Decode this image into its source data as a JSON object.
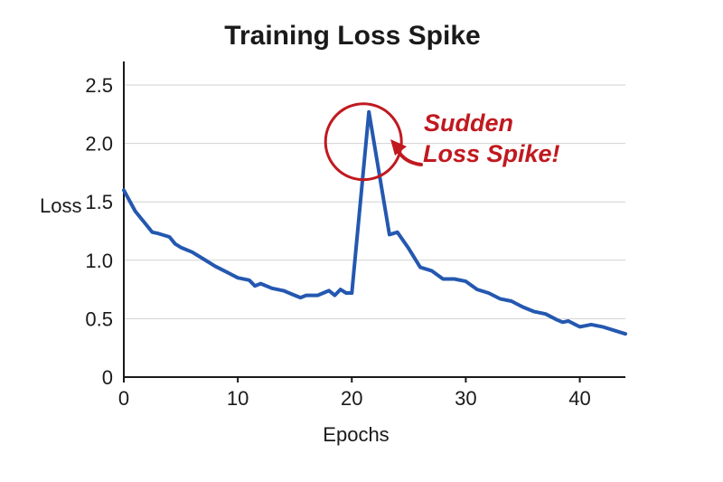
{
  "chart_data": {
    "type": "line",
    "title": "Training Loss Spike",
    "xlabel": "Epochs",
    "ylabel": "Loss",
    "xlim": [
      0,
      44
    ],
    "ylim": [
      0,
      2.5
    ],
    "x_ticks": [
      "0",
      "10",
      "20",
      "30",
      "40"
    ],
    "y_ticks": [
      "0",
      "0.5",
      "1.0",
      "1.5",
      "2.0",
      "2.5"
    ],
    "grid": "horizontal",
    "series": [
      {
        "color": "#2458b0",
        "x": [
          0,
          1,
          2,
          2.5,
          3,
          4,
          4.5,
          5,
          6,
          7,
          8,
          9,
          10,
          11,
          11.5,
          12,
          13,
          14,
          15,
          15.5,
          16,
          17,
          18,
          18.5,
          19,
          19.5,
          20,
          21.5,
          23.3,
          24,
          25,
          26,
          27,
          28,
          29,
          30,
          31,
          32,
          33,
          34,
          35,
          36,
          37,
          38,
          38.5,
          39,
          40,
          40.5,
          41,
          42,
          43,
          44
        ],
        "values": [
          1.6,
          1.42,
          1.3,
          1.24,
          1.23,
          1.2,
          1.14,
          1.11,
          1.07,
          1.01,
          0.95,
          0.9,
          0.85,
          0.83,
          0.78,
          0.8,
          0.76,
          0.74,
          0.7,
          0.68,
          0.7,
          0.7,
          0.74,
          0.7,
          0.75,
          0.72,
          0.72,
          2.27,
          1.22,
          1.24,
          1.1,
          0.94,
          0.91,
          0.84,
          0.84,
          0.82,
          0.75,
          0.72,
          0.67,
          0.65,
          0.6,
          0.56,
          0.54,
          0.49,
          0.47,
          0.48,
          0.43,
          0.44,
          0.45,
          0.43,
          0.4,
          0.37
        ]
      }
    ],
    "annotation": {
      "text_lines": [
        "Sudden",
        "Loss Spike!"
      ],
      "color": "#c0191f",
      "target_x": 21.5,
      "target_y": 2.27
    }
  }
}
